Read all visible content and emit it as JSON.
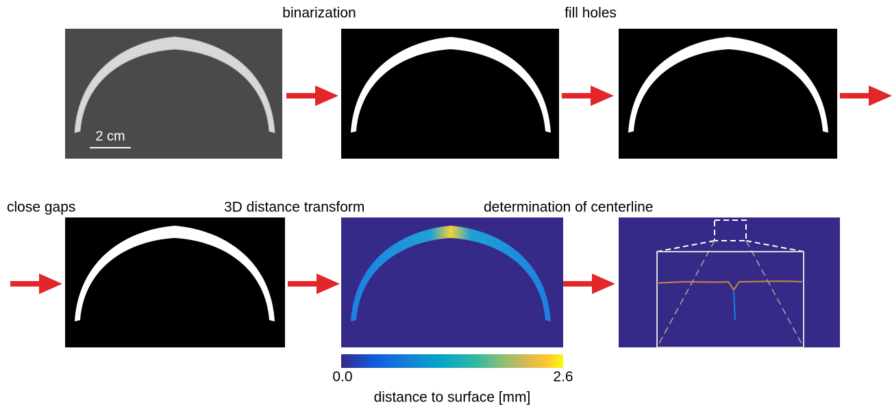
{
  "steps": {
    "binarization": "binarization",
    "fill_holes": "fill holes",
    "close_gaps": "close gaps",
    "distance_transform": "3D distance transform",
    "centerline": "determination of centerline"
  },
  "scale_bar": "2 cm",
  "colorbar": {
    "min_label": "0.0",
    "max_label": "2.6",
    "title": "distance to surface [mm]"
  }
}
